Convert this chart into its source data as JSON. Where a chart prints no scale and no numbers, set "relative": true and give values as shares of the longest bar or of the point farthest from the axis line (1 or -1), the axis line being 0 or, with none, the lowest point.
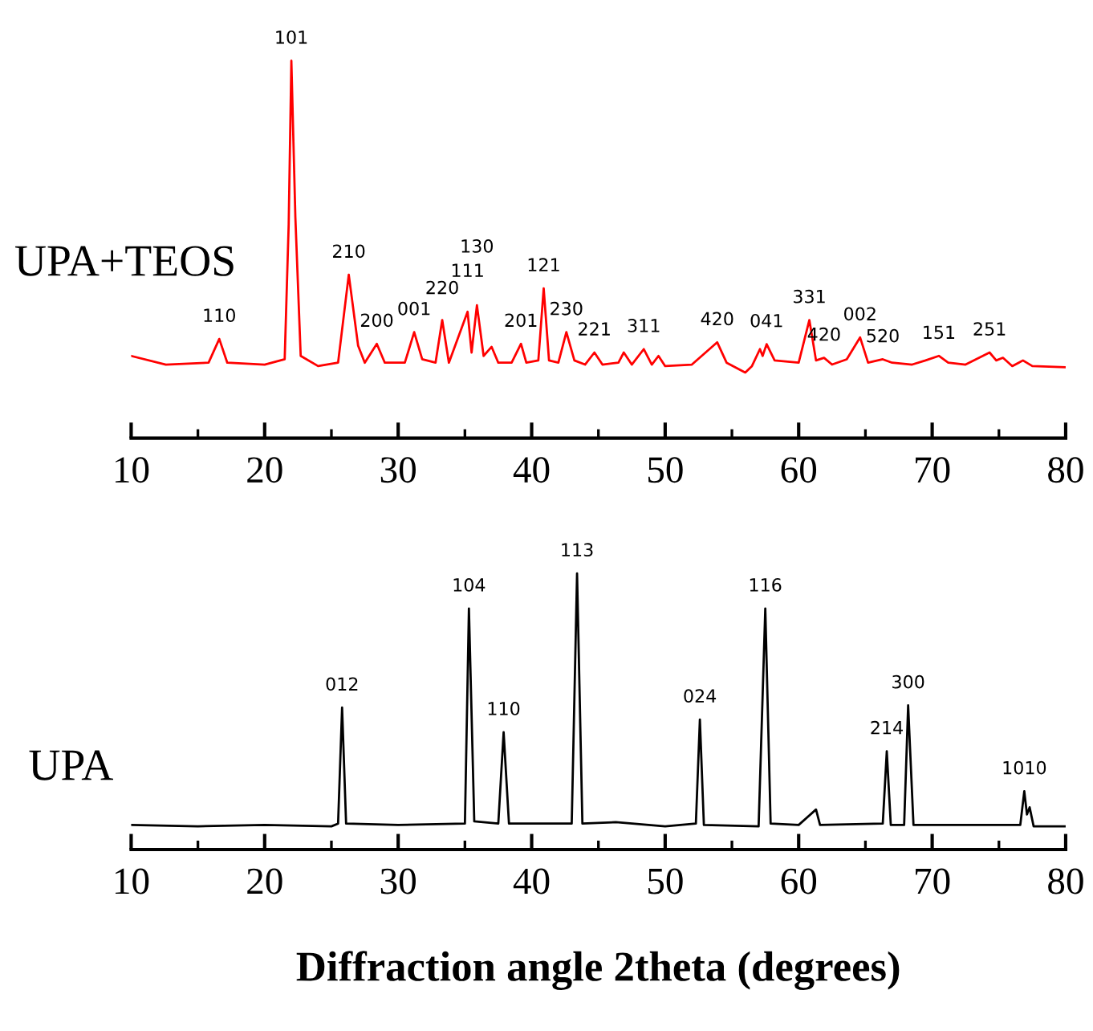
{
  "chart_data": [
    {
      "type": "line",
      "relative": true,
      "tick_labels": "x",
      "grid": false,
      "legend": false,
      "xlim": [
        10,
        80
      ],
      "xticks": [
        10,
        20,
        30,
        40,
        50,
        60,
        70,
        80
      ],
      "x": [
        10,
        12.6,
        15.8,
        16.6,
        17.2,
        20,
        21.5,
        21.8,
        22.0,
        22.3,
        22.7,
        24,
        25.5,
        26.3,
        27,
        27.5,
        28.4,
        29,
        30.5,
        31.2,
        31.8,
        32.8,
        33.3,
        33.8,
        35.2,
        35.5,
        35.9,
        36.4,
        37.0,
        37.5,
        38.5,
        39.2,
        39.6,
        40.5,
        40.9,
        41.3,
        42.0,
        42.6,
        43.2,
        44.0,
        44.7,
        45.3,
        46.5,
        46.9,
        47.5,
        48.4,
        49.0,
        49.5,
        50,
        52,
        53.9,
        54.6,
        56,
        56.5,
        57.1,
        57.3,
        57.6,
        58.2,
        60,
        60.8,
        61.3,
        61.9,
        62.5,
        63.6,
        64.6,
        65.2,
        66.3,
        67,
        68.5,
        69.5,
        70.5,
        71.2,
        72.5,
        74.3,
        74.8,
        75.3,
        76,
        76.8,
        77.5,
        80
      ],
      "series": [
        {
          "name": "UPA+TEOS",
          "color": "#ff0000",
          "values": [
            0.218,
            0.195,
            0.2,
            0.263,
            0.2,
            0.195,
            0.209,
            0.567,
            1.0,
            0.585,
            0.218,
            0.191,
            0.2,
            0.433,
            0.245,
            0.2,
            0.25,
            0.2,
            0.2,
            0.281,
            0.209,
            0.2,
            0.313,
            0.2,
            0.335,
            0.227,
            0.352,
            0.218,
            0.242,
            0.2,
            0.2,
            0.25,
            0.2,
            0.206,
            0.397,
            0.206,
            0.2,
            0.281,
            0.206,
            0.195,
            0.227,
            0.195,
            0.2,
            0.227,
            0.195,
            0.236,
            0.195,
            0.218,
            0.191,
            0.195,
            0.254,
            0.2,
            0.174,
            0.191,
            0.236,
            0.218,
            0.249,
            0.206,
            0.2,
            0.313,
            0.206,
            0.213,
            0.195,
            0.209,
            0.267,
            0.2,
            0.209,
            0.2,
            0.195,
            0.206,
            0.218,
            0.2,
            0.195,
            0.227,
            0.206,
            0.213,
            0.191,
            0.206,
            0.191,
            0.188
          ]
        }
      ],
      "annotations": [
        {
          "text": "110",
          "x": 16.6,
          "y": 0.263
        },
        {
          "text": "101",
          "x": 22.0,
          "y": 1.0
        },
        {
          "text": "210",
          "x": 26.3,
          "y": 0.433
        },
        {
          "text": "200",
          "x": 28.4,
          "y": 0.25
        },
        {
          "text": "001",
          "x": 31.2,
          "y": 0.281
        },
        {
          "text": "220",
          "x": 33.3,
          "y": 0.313
        },
        {
          "text": "111",
          "x": 35.2,
          "y": 0.335
        },
        {
          "text": "130",
          "x": 35.9,
          "y": 0.352
        },
        {
          "text": "201",
          "x": 39.2,
          "y": 0.25
        },
        {
          "text": "121",
          "x": 40.9,
          "y": 0.397
        },
        {
          "text": "230",
          "x": 42.6,
          "y": 0.281
        },
        {
          "text": "221",
          "x": 44.7,
          "y": 0.227
        },
        {
          "text": "311",
          "x": 48.4,
          "y": 0.236
        },
        {
          "text": "420",
          "x": 53.9,
          "y": 0.254
        },
        {
          "text": "041",
          "x": 57.6,
          "y": 0.249
        },
        {
          "text": "331",
          "x": 60.8,
          "y": 0.313
        },
        {
          "text": "420",
          "x": 61.9,
          "y": 0.213
        },
        {
          "text": "002",
          "x": 64.6,
          "y": 0.267
        },
        {
          "text": "520",
          "x": 66.3,
          "y": 0.209
        },
        {
          "text": "151",
          "x": 70.5,
          "y": 0.218
        },
        {
          "text": "251",
          "x": 74.3,
          "y": 0.227
        }
      ]
    },
    {
      "type": "line",
      "relative": true,
      "tick_labels": "x",
      "grid": false,
      "legend": false,
      "xlim": [
        10,
        80
      ],
      "xticks": [
        10,
        20,
        30,
        40,
        50,
        60,
        70,
        80
      ],
      "xlabel": "Diffraction angle 2theta (degrees)",
      "x": [
        10,
        15,
        20,
        25,
        25.5,
        25.8,
        26.1,
        30,
        35,
        35.3,
        35.7,
        37.5,
        37.9,
        38.3,
        43,
        43.4,
        43.8,
        46.3,
        50,
        52.3,
        52.6,
        52.9,
        57,
        57.5,
        57.9,
        60,
        61.3,
        61.6,
        66.3,
        66.6,
        66.9,
        67.9,
        68.2,
        68.6,
        74,
        76.6,
        76.9,
        77.1,
        77.3,
        77.6,
        80
      ],
      "series": [
        {
          "name": "UPA",
          "color": "#000000",
          "values": [
            0.089,
            0.084,
            0.089,
            0.084,
            0.094,
            0.514,
            0.094,
            0.089,
            0.094,
            0.873,
            0.102,
            0.094,
            0.425,
            0.094,
            0.094,
            1.0,
            0.094,
            0.099,
            0.084,
            0.094,
            0.471,
            0.089,
            0.084,
            0.873,
            0.094,
            0.089,
            0.145,
            0.089,
            0.094,
            0.356,
            0.089,
            0.089,
            0.522,
            0.089,
            0.089,
            0.089,
            0.211,
            0.127,
            0.153,
            0.084,
            0.084
          ]
        }
      ],
      "annotations": [
        {
          "text": "012",
          "x": 25.8,
          "y": 0.514
        },
        {
          "text": "104",
          "x": 35.3,
          "y": 0.873
        },
        {
          "text": "110",
          "x": 37.9,
          "y": 0.425
        },
        {
          "text": "113",
          "x": 43.4,
          "y": 1.0
        },
        {
          "text": "024",
          "x": 52.6,
          "y": 0.471
        },
        {
          "text": "116",
          "x": 57.5,
          "y": 0.873
        },
        {
          "text": "214",
          "x": 66.6,
          "y": 0.356
        },
        {
          "text": "300",
          "x": 68.2,
          "y": 0.522
        },
        {
          "text": "1010",
          "x": 76.9,
          "y": 0.211
        }
      ]
    }
  ]
}
